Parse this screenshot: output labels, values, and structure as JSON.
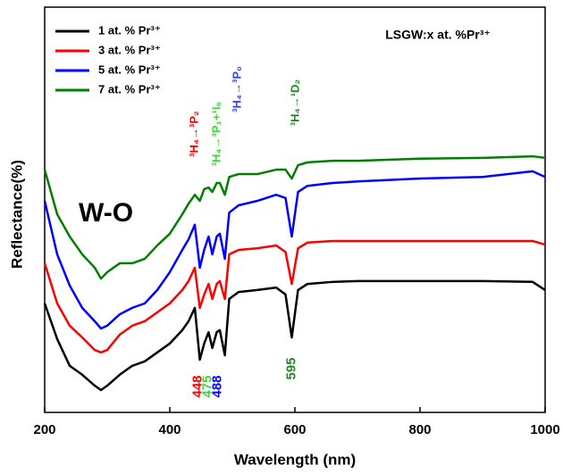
{
  "chart_data": {
    "type": "line",
    "title": "LSGW:x at. %Pr³⁺",
    "x_label": "Wavelength (nm)",
    "y_label": "Reflectance(%)",
    "xlim": [
      200,
      1000
    ],
    "xticks": [
      200,
      400,
      600,
      800,
      1000
    ],
    "ylim": [
      0,
      100
    ],
    "x": [
      200,
      220,
      240,
      260,
      280,
      290,
      300,
      320,
      340,
      360,
      380,
      400,
      420,
      430,
      440,
      448,
      455,
      462,
      468,
      475,
      480,
      488,
      495,
      510,
      540,
      570,
      585,
      595,
      605,
      620,
      660,
      700,
      800,
      900,
      980,
      1000
    ],
    "series": [
      {
        "name": "1 at. % Pr³⁺",
        "color": "#000000",
        "values": [
          26.9,
          18.1,
          11.5,
          9.3,
          6.6,
          5.5,
          6.6,
          9.3,
          11.5,
          12.6,
          14.8,
          17.0,
          20.3,
          22.5,
          25.8,
          13.0,
          17.0,
          19.8,
          15.9,
          19.8,
          20.3,
          14.1,
          28.0,
          29.7,
          30.2,
          30.8,
          29.1,
          18.5,
          30.2,
          31.7,
          32.2,
          32.4,
          32.4,
          32.4,
          32.2,
          30.2
        ]
      },
      {
        "name": "3 at. % Pr³⁺",
        "color": "#ff0000",
        "values": [
          36.8,
          26.9,
          21.4,
          18.5,
          15.4,
          14.8,
          15.4,
          19.2,
          21.4,
          22.5,
          24.7,
          26.9,
          30.2,
          32.4,
          35.7,
          25.8,
          29.1,
          31.7,
          28.0,
          31.7,
          32.4,
          28.0,
          39.0,
          40.1,
          40.5,
          41.2,
          39.6,
          31.7,
          40.5,
          41.9,
          42.3,
          42.3,
          42.3,
          42.3,
          42.3,
          41.4
        ]
      },
      {
        "name": "5 at. % Pr³⁺",
        "color": "#0000ff",
        "values": [
          52.2,
          39.0,
          31.3,
          25.8,
          22.5,
          20.7,
          21.4,
          24.2,
          25.8,
          26.9,
          30.2,
          34.6,
          40.1,
          42.7,
          46.3,
          35.7,
          40.1,
          43.4,
          39.0,
          43.4,
          44.1,
          37.9,
          49.3,
          51.1,
          52.2,
          53.7,
          52.9,
          43.4,
          54.4,
          55.9,
          56.6,
          57.0,
          57.7,
          58.1,
          59.5,
          58.1
        ]
      },
      {
        "name": "7 at. % Pr³⁺",
        "color": "#008000",
        "values": [
          59.9,
          48.9,
          43.4,
          39.0,
          35.7,
          33.0,
          34.6,
          36.8,
          36.8,
          37.9,
          41.2,
          44.1,
          48.9,
          51.5,
          53.7,
          52.2,
          55.1,
          55.5,
          54.4,
          56.6,
          56.6,
          53.7,
          58.1,
          58.8,
          58.8,
          59.9,
          59.9,
          57.7,
          61.0,
          61.7,
          62.1,
          62.1,
          62.6,
          62.8,
          63.2,
          62.8
        ]
      }
    ],
    "annotations": [
      {
        "text": "W-O",
        "color": "#000000"
      },
      {
        "text": "³H₄→³P₂",
        "color": "#ff0000"
      },
      {
        "text": "³H₄→³P₁+¹I₆",
        "color": "#33dd33"
      },
      {
        "text": "³H₄→³P₀",
        "color": "#3344ff"
      },
      {
        "text": "³H₄→¹D₂",
        "color": "#228822"
      }
    ],
    "peaks": [
      {
        "value": 448,
        "color": "#ff0000"
      },
      {
        "value": 475,
        "color": "#33dd33"
      },
      {
        "value": 488,
        "color": "#0000ff"
      },
      {
        "value": 595,
        "color": "#228822"
      }
    ]
  }
}
